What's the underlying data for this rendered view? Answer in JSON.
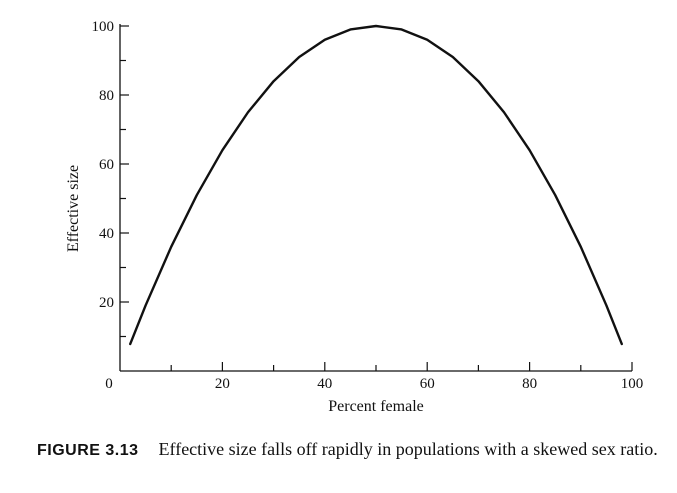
{
  "chart_data": {
    "type": "line",
    "title": "",
    "xlabel": "Percent female",
    "ylabel": "Effective size",
    "xlim": [
      0,
      100
    ],
    "ylim": [
      0,
      100
    ],
    "x_ticks": [
      "0",
      "20",
      "40",
      "60",
      "80",
      "100"
    ],
    "y_ticks": [
      "20",
      "40",
      "60",
      "80",
      "100"
    ],
    "grid": false,
    "legend": "none",
    "series": [
      {
        "values": [
          {
            "x": 2,
            "y": 7.84
          },
          {
            "x": 5,
            "y": 19
          },
          {
            "x": 10,
            "y": 36
          },
          {
            "x": 15,
            "y": 51
          },
          {
            "x": 20,
            "y": 64
          },
          {
            "x": 25,
            "y": 75
          },
          {
            "x": 30,
            "y": 84
          },
          {
            "x": 35,
            "y": 91
          },
          {
            "x": 40,
            "y": 96
          },
          {
            "x": 45,
            "y": 99
          },
          {
            "x": 50,
            "y": 100
          },
          {
            "x": 55,
            "y": 99
          },
          {
            "x": 60,
            "y": 96
          },
          {
            "x": 65,
            "y": 91
          },
          {
            "x": 70,
            "y": 84
          },
          {
            "x": 75,
            "y": 75
          },
          {
            "x": 80,
            "y": 64
          },
          {
            "x": 85,
            "y": 51
          },
          {
            "x": 90,
            "y": 36
          },
          {
            "x": 95,
            "y": 19
          },
          {
            "x": 98,
            "y": 7.84
          }
        ]
      }
    ]
  },
  "caption": {
    "label": "FIGURE 3.13",
    "text": "Effective size falls off rapidly in populations with a skewed sex ratio."
  }
}
